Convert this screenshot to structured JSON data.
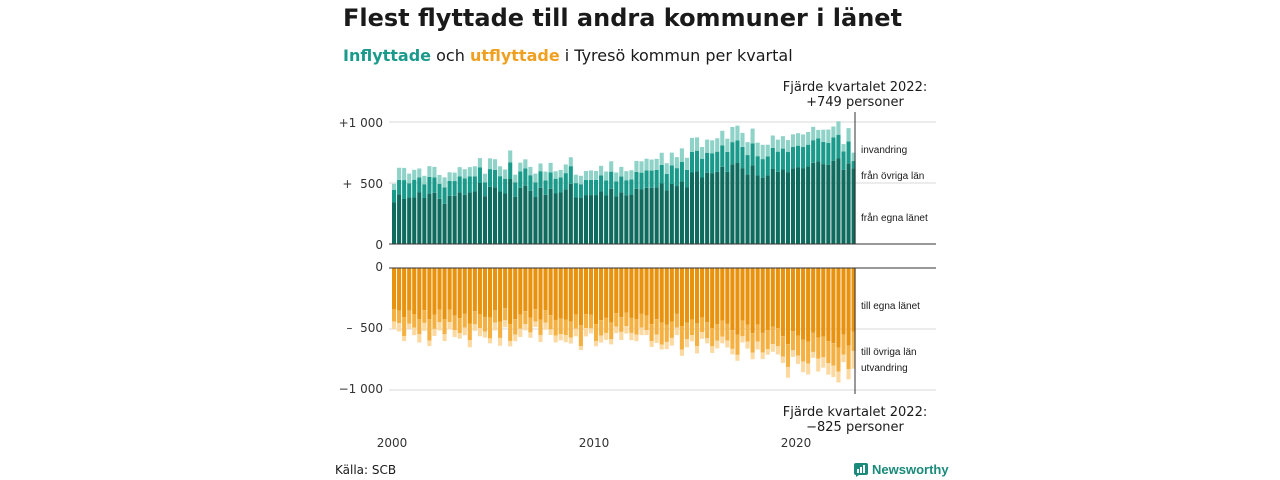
{
  "title": "Flest flyttade till andra kommuner i länet",
  "subtitle": {
    "part1": "Inflyttade",
    "part2": " och ",
    "part3": "utflyttade",
    "part4": " i Tyresö kommun per kvartal"
  },
  "source": "Källa: SCB",
  "logo_text": "Newsworthy",
  "colors": {
    "in_egna": "#0e6b5e",
    "in_ovriga": "#1a9a8a",
    "in_invandring": "#8fd3c8",
    "out_egna": "#e8920e",
    "out_ovriga": "#f5b042",
    "out_utvandring": "#fbd9a0",
    "grid": "#d9d9d9",
    "axis": "#333333"
  },
  "chart_data": {
    "type": "bar",
    "stacked": true,
    "frequency": "quarterly",
    "x_start": "2000 Q1",
    "x_end": "2022 Q4",
    "x_ticks": [
      "2000",
      "2010",
      "2020"
    ],
    "inflow": {
      "y_ticks": [
        "+1 000",
        "+  500",
        "0"
      ],
      "ylim": [
        0,
        1000
      ],
      "series": [
        {
          "name": "från egna länet",
          "values": [
            343,
            408,
            369,
            382,
            382,
            422,
            377,
            413,
            420,
            371,
            329,
            396,
            395,
            423,
            404,
            423,
            430,
            500,
            392,
            469,
            465,
            430,
            414,
            533,
            386,
            460,
            478,
            437,
            385,
            461,
            403,
            453,
            414,
            422,
            449,
            493,
            384,
            377,
            401,
            401,
            401,
            430,
            398,
            453,
            392,
            423,
            400,
            405,
            452,
            447,
            461,
            461,
            465,
            496,
            439,
            492,
            475,
            514,
            463,
            586,
            594,
            545,
            584,
            581,
            591,
            633,
            591,
            653,
            664,
            622,
            569,
            644,
            562,
            544,
            561,
            615,
            591,
            611,
            589,
            621,
            630,
            622,
            636,
            666,
            678,
            655,
            648,
            683,
            701,
            609,
            661,
            620
          ]
        },
        {
          "name": "från övriga län",
          "values": [
            100,
            117,
            155,
            116,
            145,
            123,
            113,
            138,
            125,
            123,
            135,
            122,
            121,
            132,
            133,
            132,
            125,
            127,
            114,
            145,
            143,
            126,
            121,
            137,
            119,
            135,
            141,
            127,
            121,
            136,
            119,
            133,
            121,
            124,
            132,
            145,
            115,
            113,
            124,
            124,
            124,
            133,
            123,
            140,
            121,
            130,
            123,
            125,
            139,
            138,
            142,
            141,
            143,
            152,
            136,
            152,
            147,
            160,
            144,
            169,
            171,
            154,
            164,
            163,
            166,
            176,
            164,
            182,
            186,
            174,
            160,
            181,
            158,
            152,
            158,
            172,
            166,
            171,
            165,
            174,
            176,
            173,
            178,
            185,
            187,
            182,
            180,
            190,
            195,
            150,
            180,
            60
          ]
        },
        {
          "name": "invandring",
          "values": [
            50,
            100,
            100,
            79,
            81,
            74,
            69,
            87,
            87,
            72,
            82,
            70,
            69,
            75,
            76,
            75,
            82,
            77,
            70,
            88,
            87,
            81,
            76,
            97,
            63,
            72,
            75,
            68,
            71,
            63,
            71,
            79,
            61,
            61,
            71,
            73,
            69,
            69,
            73,
            78,
            73,
            78,
            73,
            85,
            73,
            79,
            74,
            75,
            90,
            93,
            96,
            90,
            90,
            100,
            87,
            105,
            90,
            110,
            100,
            115,
            109,
            96,
            108,
            106,
            110,
            119,
            108,
            124,
            120,
            115,
            106,
            121,
            111,
            117,
            95,
            102,
            98,
            102,
            98,
            104,
            102,
            103,
            104,
            109,
            70,
            100,
            110,
            90,
            110,
            60,
            109,
            69
          ]
        }
      ],
      "labels": [
        "invandring",
        "från övriga län",
        "från egna länet"
      ],
      "annotation": [
        "Fjärde kvartalet 2022:",
        "+749 personer"
      ]
    },
    "outflow": {
      "y_ticks": [
        "0",
        "–  500",
        "−1 000"
      ],
      "ylim": [
        -1000,
        0
      ],
      "series": [
        {
          "name": "till egna länet",
          "values": [
            -339,
            -348,
            -402,
            -350,
            -377,
            -418,
            -346,
            -421,
            -384,
            -342,
            -418,
            -341,
            -391,
            -411,
            -376,
            -455,
            -355,
            -380,
            -401,
            -405,
            -344,
            -441,
            -330,
            -460,
            -420,
            -383,
            -354,
            -406,
            -338,
            -422,
            -345,
            -387,
            -426,
            -416,
            -422,
            -439,
            -383,
            -470,
            -379,
            -381,
            -460,
            -427,
            -409,
            -448,
            -370,
            -403,
            -367,
            -409,
            -421,
            -376,
            -391,
            -460,
            -419,
            -448,
            -466,
            -441,
            -376,
            -476,
            -449,
            -424,
            -454,
            -405,
            -443,
            -494,
            -459,
            -432,
            -458,
            -510,
            -548,
            -431,
            -463,
            -534,
            -464,
            -532,
            -511,
            -480,
            -494,
            -559,
            -624,
            -519,
            -553,
            -589,
            -603,
            -529,
            -571,
            -563,
            -599,
            -616,
            -654,
            -546,
            -637,
            -523
          ]
        },
        {
          "name": "till övriga län",
          "values": [
            -101,
            -104,
            -157,
            -105,
            -113,
            -125,
            -104,
            -174,
            -115,
            -103,
            -125,
            -102,
            -117,
            -123,
            -113,
            -137,
            -107,
            -114,
            -120,
            -172,
            -103,
            -132,
            -99,
            -138,
            -126,
            -115,
            -106,
            -122,
            -101,
            -127,
            -103,
            -116,
            -128,
            -125,
            -127,
            -132,
            -115,
            -171,
            -114,
            -114,
            -138,
            -128,
            -123,
            -134,
            -111,
            -121,
            -110,
            -123,
            -126,
            -113,
            -117,
            -138,
            -126,
            -180,
            -140,
            -132,
            -113,
            -193,
            -135,
            -127,
            -186,
            -121,
            -133,
            -148,
            -138,
            -130,
            -137,
            -153,
            -164,
            -129,
            -139,
            -160,
            -139,
            -160,
            -153,
            -144,
            -148,
            -168,
            -187,
            -156,
            -166,
            -177,
            -181,
            -159,
            -171,
            -169,
            -180,
            -185,
            -196,
            -164,
            -191,
            -157
          ]
        },
        {
          "name": "utvandring",
          "values": [
            -61,
            -69,
            -40,
            -44,
            -61,
            -68,
            -65,
            -45,
            -58,
            -67,
            -56,
            -61,
            -58,
            -45,
            -62,
            -58,
            -53,
            -65,
            -49,
            -40,
            -65,
            -64,
            -57,
            -44,
            -54,
            -67,
            -51,
            -44,
            -45,
            -57,
            -57,
            -46,
            -56,
            -52,
            -59,
            -48,
            -62,
            -32,
            -68,
            -40,
            -44,
            -56,
            -57,
            -44,
            -53,
            -66,
            -60,
            -60,
            -53,
            -61,
            -42,
            -49,
            -69,
            -40,
            -59,
            -63,
            -61,
            -51,
            -66,
            -50,
            -60,
            -54,
            -42,
            -54,
            -62,
            -55,
            -57,
            -45,
            -48,
            -50,
            -59,
            -54,
            -65,
            -55,
            -47,
            -63,
            -67,
            -52,
            -88,
            -54,
            -67,
            -88,
            -89,
            -48,
            -107,
            -85,
            -95,
            -93,
            -88,
            -62,
            -85,
            -145
          ]
        }
      ],
      "labels": [
        "till egna länet",
        "till övriga län",
        "utvandring"
      ],
      "annotation": [
        "Fjärde kvartalet 2022:",
        "−825 personer"
      ]
    }
  }
}
